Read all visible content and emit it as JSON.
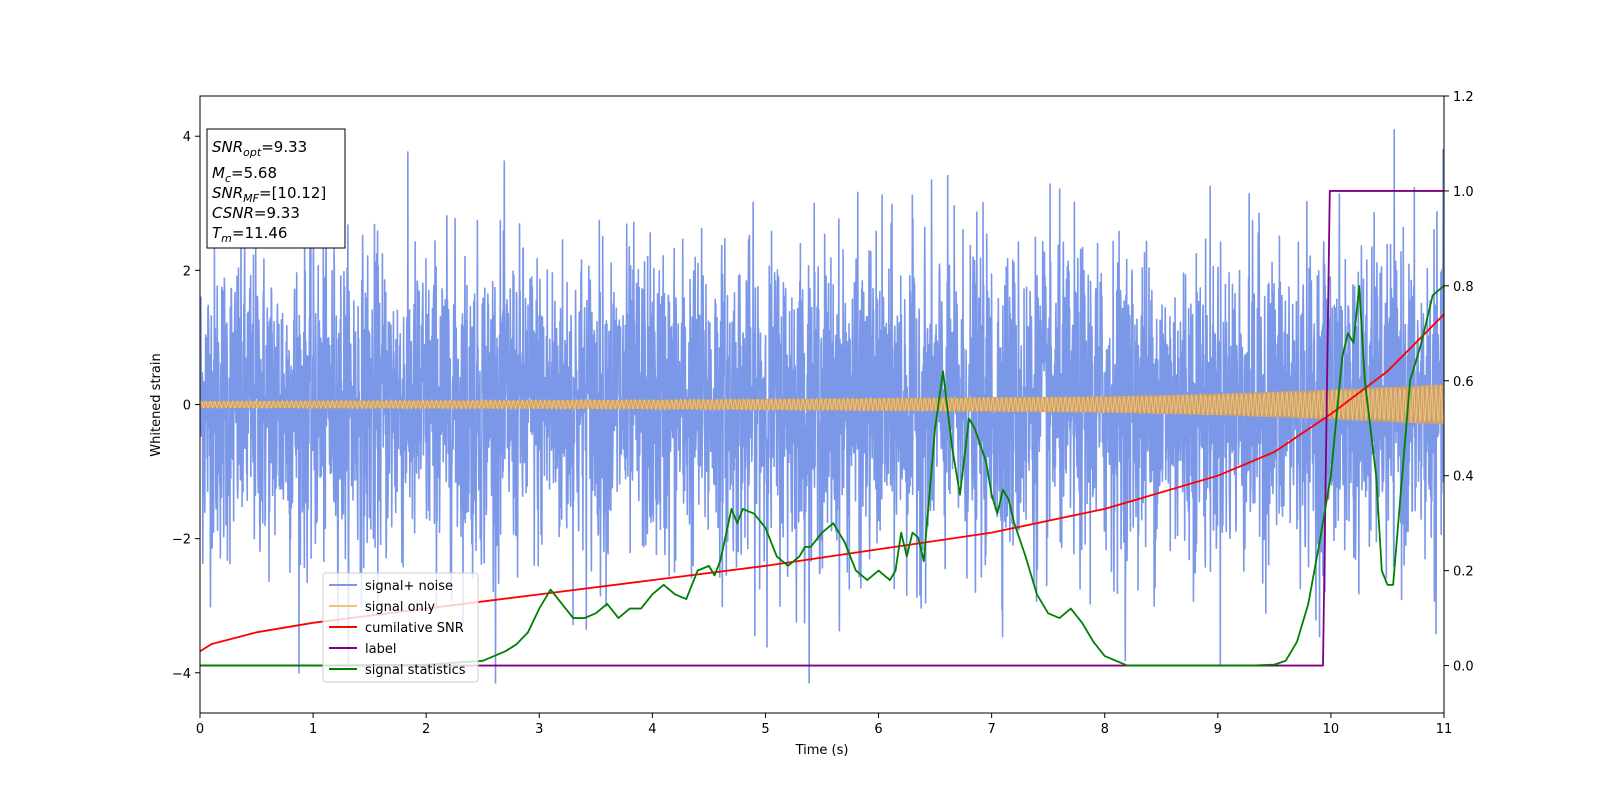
{
  "chart_data": {
    "type": "line",
    "xlabel": "Time (s)",
    "ylabel": "Whitened strain",
    "xlim": [
      0,
      11
    ],
    "ylim": [
      -4.6,
      4.6
    ],
    "y2lim": [
      -0.1,
      1.2
    ],
    "x_ticks": [
      "0",
      "1",
      "2",
      "3",
      "4",
      "5",
      "6",
      "7",
      "8",
      "9",
      "10",
      "11"
    ],
    "y_ticks": [
      "4",
      "2",
      "0",
      "−2",
      "−4"
    ],
    "y2_ticks": [
      "1.2",
      "1.0",
      "0.8",
      "0.6",
      "0.4",
      "0.2",
      "0.0"
    ],
    "grid": false,
    "legend_position": "lower-left",
    "colors": {
      "signal_noise": "#7b97e8",
      "signal_only": "#f5c270",
      "signal_fill": "#c9a070",
      "cumulative_snr": "#ff0000",
      "label": "#800080",
      "signal_statistics": "#008000"
    },
    "info_box": {
      "snr_opt": "9.33",
      "mc": "5.68",
      "snr_mf": "[10.12]",
      "csnr": "9.33",
      "tm": "11.46"
    },
    "series": [
      {
        "name": "signal+ noise",
        "axis": "left",
        "description_value": "whitened noise, std about 1.1, spikes up to 4.1"
      },
      {
        "name": "signal only",
        "axis": "left",
        "amplitude_x": [
          0,
          4,
          8,
          9,
          10,
          10.5,
          11
        ],
        "amplitude_y": [
          0.05,
          0.07,
          0.12,
          0.16,
          0.22,
          0.26,
          0.3
        ]
      },
      {
        "name": "cumilative SNR",
        "axis": "right",
        "x": [
          0,
          0.1,
          0.5,
          1,
          2,
          3,
          4,
          5,
          6,
          7,
          8,
          9,
          9.5,
          10,
          10.5,
          11
        ],
        "y": [
          0.03,
          0.045,
          0.07,
          0.09,
          0.12,
          0.15,
          0.18,
          0.21,
          0.245,
          0.28,
          0.33,
          0.4,
          0.45,
          0.53,
          0.62,
          0.74
        ]
      },
      {
        "name": "label",
        "axis": "right",
        "x": [
          0,
          9.93,
          9.99,
          11
        ],
        "y": [
          0,
          0,
          1,
          1
        ]
      },
      {
        "name": "signal statistics",
        "axis": "right",
        "x": [
          0,
          1,
          2,
          2.5,
          2.6,
          2.7,
          2.8,
          2.9,
          3.0,
          3.1,
          3.2,
          3.3,
          3.4,
          3.5,
          3.6,
          3.7,
          3.8,
          3.9,
          4.0,
          4.1,
          4.2,
          4.3,
          4.4,
          4.5,
          4.55,
          4.6,
          4.7,
          4.75,
          4.8,
          4.9,
          5.0,
          5.05,
          5.1,
          5.2,
          5.3,
          5.35,
          5.4,
          5.5,
          5.6,
          5.7,
          5.8,
          5.9,
          6.0,
          6.1,
          6.15,
          6.2,
          6.25,
          6.3,
          6.35,
          6.4,
          6.5,
          6.57,
          6.65,
          6.72,
          6.8,
          6.85,
          6.95,
          7.0,
          7.05,
          7.1,
          7.15,
          7.2,
          7.3,
          7.4,
          7.5,
          7.6,
          7.7,
          7.8,
          7.9,
          8.0,
          8.2,
          8.5,
          9.0,
          9.3,
          9.5,
          9.6,
          9.7,
          9.8,
          9.9,
          10.0,
          10.1,
          10.15,
          10.2,
          10.25,
          10.3,
          10.4,
          10.45,
          10.5,
          10.55,
          10.7,
          10.8,
          10.9,
          11.0
        ],
        "y": [
          0,
          0,
          0.002,
          0.01,
          0.02,
          0.03,
          0.045,
          0.07,
          0.12,
          0.16,
          0.13,
          0.1,
          0.1,
          0.11,
          0.13,
          0.1,
          0.12,
          0.12,
          0.15,
          0.17,
          0.15,
          0.14,
          0.2,
          0.21,
          0.19,
          0.22,
          0.33,
          0.3,
          0.33,
          0.32,
          0.29,
          0.26,
          0.23,
          0.21,
          0.23,
          0.25,
          0.25,
          0.28,
          0.3,
          0.26,
          0.2,
          0.18,
          0.2,
          0.18,
          0.2,
          0.28,
          0.23,
          0.28,
          0.27,
          0.22,
          0.5,
          0.62,
          0.46,
          0.36,
          0.52,
          0.5,
          0.43,
          0.36,
          0.32,
          0.37,
          0.35,
          0.3,
          0.23,
          0.15,
          0.11,
          0.1,
          0.12,
          0.09,
          0.05,
          0.02,
          0.0,
          0.0,
          0.0,
          0.0,
          0.002,
          0.01,
          0.05,
          0.13,
          0.26,
          0.4,
          0.65,
          0.7,
          0.68,
          0.8,
          0.6,
          0.4,
          0.2,
          0.17,
          0.17,
          0.6,
          0.68,
          0.78,
          0.8
        ]
      }
    ]
  }
}
